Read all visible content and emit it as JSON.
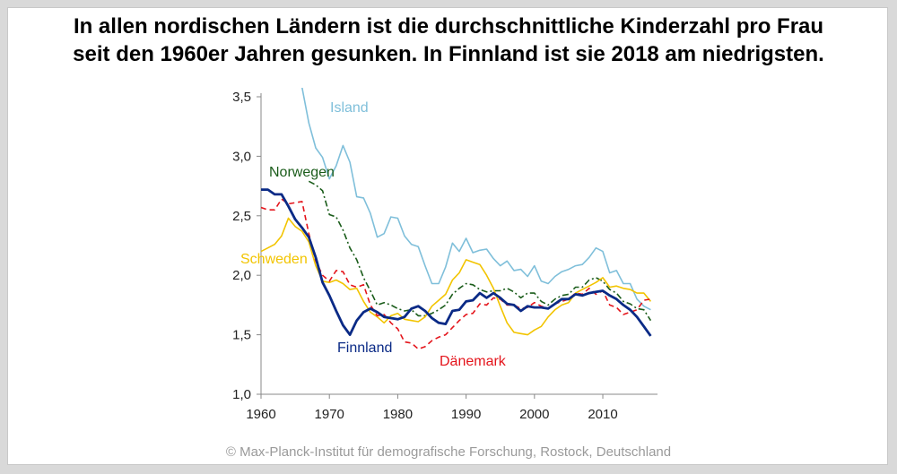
{
  "title": {
    "line1": "In allen nordischen Ländern ist die durchschnittliche Kinderzahl pro Frau",
    "line2": "seit den 1960er Jahren gesunken. In Finnland ist sie 2018 am niedrigsten."
  },
  "footer": "© Max-Planck-Institut für demografische Forschung, Rostock, Deutschland",
  "chart_data": {
    "type": "line",
    "xlim": [
      1960,
      2018
    ],
    "ylim": [
      1.0,
      3.5
    ],
    "x_ticks": [
      1960,
      1970,
      1980,
      1990,
      2000,
      2010
    ],
    "x_tick_labels": [
      "1960",
      "1970",
      "1980",
      "1990",
      "2000",
      "2010"
    ],
    "y_ticks": [
      1.0,
      1.5,
      2.0,
      2.5,
      3.0,
      3.5
    ],
    "y_tick_labels": [
      "1,0",
      "1,5",
      "2,0",
      "2,5",
      "3,0",
      "3,5"
    ],
    "grid": false,
    "legend": "inline labels",
    "series": [
      {
        "name": "Island",
        "color": "#7fbfda",
        "style": "solid",
        "x": [
          1966,
          1967,
          1968,
          1969,
          1970,
          1971,
          1972,
          1973,
          1974,
          1975,
          1976,
          1977,
          1978,
          1979,
          1980,
          1981,
          1982,
          1983,
          1984,
          1985,
          1986,
          1987,
          1988,
          1989,
          1990,
          1991,
          1992,
          1993,
          1994,
          1995,
          1996,
          1997,
          1998,
          1999,
          2000,
          2001,
          2002,
          2003,
          2004,
          2005,
          2006,
          2007,
          2008,
          2009,
          2010,
          2011,
          2012,
          2013,
          2014,
          2015,
          2016,
          2017
        ],
        "values": [
          3.58,
          3.28,
          3.07,
          2.99,
          2.81,
          2.92,
          3.09,
          2.95,
          2.66,
          2.65,
          2.52,
          2.32,
          2.35,
          2.49,
          2.48,
          2.33,
          2.26,
          2.24,
          2.08,
          1.93,
          1.93,
          2.07,
          2.27,
          2.2,
          2.31,
          2.19,
          2.21,
          2.22,
          2.14,
          2.08,
          2.12,
          2.04,
          2.05,
          1.99,
          2.08,
          1.95,
          1.93,
          1.99,
          2.03,
          2.05,
          2.08,
          2.09,
          2.15,
          2.23,
          2.2,
          2.02,
          2.04,
          1.93,
          1.93,
          1.8,
          1.74,
          1.71
        ]
      },
      {
        "name": "Norwegen",
        "color": "#1a5c1a",
        "style": "dashdot",
        "x": [
          1967,
          1968,
          1969,
          1970,
          1971,
          1972,
          1973,
          1974,
          1975,
          1976,
          1977,
          1978,
          1979,
          1980,
          1981,
          1982,
          1983,
          1984,
          1985,
          1986,
          1987,
          1988,
          1989,
          1990,
          1991,
          1992,
          1993,
          1994,
          1995,
          1996,
          1997,
          1998,
          1999,
          2000,
          2001,
          2002,
          2003,
          2004,
          2005,
          2006,
          2007,
          2008,
          2009,
          2010,
          2011,
          2012,
          2013,
          2014,
          2015,
          2016,
          2017
        ],
        "values": [
          2.79,
          2.76,
          2.71,
          2.51,
          2.49,
          2.38,
          2.23,
          2.13,
          1.98,
          1.87,
          1.75,
          1.77,
          1.75,
          1.72,
          1.7,
          1.71,
          1.66,
          1.66,
          1.68,
          1.71,
          1.75,
          1.84,
          1.89,
          1.93,
          1.92,
          1.88,
          1.86,
          1.87,
          1.87,
          1.89,
          1.86,
          1.81,
          1.85,
          1.85,
          1.78,
          1.75,
          1.8,
          1.83,
          1.84,
          1.9,
          1.9,
          1.96,
          1.98,
          1.95,
          1.88,
          1.85,
          1.78,
          1.76,
          1.72,
          1.71,
          1.62
        ]
      },
      {
        "name": "Schweden",
        "color": "#f2c400",
        "style": "solid",
        "x": [
          1960,
          1961,
          1962,
          1963,
          1964,
          1965,
          1966,
          1967,
          1968,
          1969,
          1970,
          1971,
          1972,
          1973,
          1974,
          1975,
          1976,
          1977,
          1978,
          1979,
          1980,
          1981,
          1982,
          1983,
          1984,
          1985,
          1986,
          1987,
          1988,
          1989,
          1990,
          1991,
          1992,
          1993,
          1994,
          1995,
          1996,
          1997,
          1998,
          1999,
          2000,
          2001,
          2002,
          2003,
          2004,
          2005,
          2006,
          2007,
          2008,
          2009,
          2010,
          2011,
          2012,
          2013,
          2014,
          2015,
          2016,
          2017
        ],
        "values": [
          2.2,
          2.23,
          2.26,
          2.33,
          2.48,
          2.41,
          2.37,
          2.28,
          2.08,
          1.95,
          1.94,
          1.96,
          1.93,
          1.88,
          1.89,
          1.78,
          1.69,
          1.65,
          1.6,
          1.66,
          1.68,
          1.63,
          1.62,
          1.61,
          1.65,
          1.74,
          1.79,
          1.84,
          1.96,
          2.02,
          2.13,
          2.11,
          2.09,
          2.0,
          1.89,
          1.74,
          1.6,
          1.52,
          1.51,
          1.5,
          1.54,
          1.57,
          1.65,
          1.71,
          1.75,
          1.77,
          1.85,
          1.88,
          1.91,
          1.94,
          1.98,
          1.9,
          1.91,
          1.89,
          1.88,
          1.85,
          1.85,
          1.78
        ]
      },
      {
        "name": "Dänemark",
        "color": "#e4141b",
        "style": "dashed",
        "x": [
          1960,
          1961,
          1962,
          1963,
          1964,
          1965,
          1966,
          1967,
          1968,
          1969,
          1970,
          1971,
          1972,
          1973,
          1974,
          1975,
          1976,
          1977,
          1978,
          1979,
          1980,
          1981,
          1982,
          1983,
          1984,
          1985,
          1986,
          1987,
          1988,
          1989,
          1990,
          1991,
          1992,
          1993,
          1994,
          1995,
          1996,
          1997,
          1998,
          1999,
          2000,
          2001,
          2002,
          2003,
          2004,
          2005,
          2006,
          2007,
          2008,
          2009,
          2010,
          2011,
          2012,
          2013,
          2014,
          2015,
          2016,
          2017
        ],
        "values": [
          2.57,
          2.55,
          2.55,
          2.64,
          2.6,
          2.61,
          2.62,
          2.35,
          2.12,
          2.0,
          1.95,
          2.04,
          2.03,
          1.92,
          1.9,
          1.92,
          1.75,
          1.66,
          1.67,
          1.6,
          1.55,
          1.44,
          1.43,
          1.38,
          1.4,
          1.45,
          1.48,
          1.5,
          1.56,
          1.62,
          1.67,
          1.68,
          1.76,
          1.75,
          1.81,
          1.8,
          1.75,
          1.75,
          1.72,
          1.73,
          1.77,
          1.74,
          1.72,
          1.76,
          1.78,
          1.8,
          1.85,
          1.84,
          1.89,
          1.84,
          1.87,
          1.75,
          1.73,
          1.67,
          1.69,
          1.71,
          1.79,
          1.8
        ]
      },
      {
        "name": "Finnland",
        "color": "#0a2a86",
        "style": "solid-bold",
        "x": [
          1960,
          1961,
          1962,
          1963,
          1964,
          1965,
          1966,
          1967,
          1968,
          1969,
          1970,
          1971,
          1972,
          1973,
          1974,
          1975,
          1976,
          1977,
          1978,
          1979,
          1980,
          1981,
          1982,
          1983,
          1984,
          1985,
          1986,
          1987,
          1988,
          1989,
          1990,
          1991,
          1992,
          1993,
          1994,
          1995,
          1996,
          1997,
          1998,
          1999,
          2000,
          2001,
          2002,
          2003,
          2004,
          2005,
          2006,
          2007,
          2008,
          2009,
          2010,
          2011,
          2012,
          2013,
          2014,
          2015,
          2016,
          2017
        ],
        "values": [
          2.72,
          2.72,
          2.68,
          2.68,
          2.58,
          2.47,
          2.4,
          2.32,
          2.15,
          1.94,
          1.83,
          1.7,
          1.58,
          1.5,
          1.62,
          1.69,
          1.72,
          1.69,
          1.65,
          1.64,
          1.63,
          1.65,
          1.72,
          1.74,
          1.7,
          1.64,
          1.6,
          1.59,
          1.7,
          1.71,
          1.78,
          1.79,
          1.85,
          1.81,
          1.85,
          1.81,
          1.76,
          1.75,
          1.7,
          1.74,
          1.73,
          1.73,
          1.72,
          1.76,
          1.8,
          1.8,
          1.84,
          1.83,
          1.85,
          1.86,
          1.87,
          1.83,
          1.8,
          1.75,
          1.71,
          1.65,
          1.57,
          1.49
        ]
      }
    ],
    "labels": [
      {
        "text": "Island",
        "series": "Island"
      },
      {
        "text": "Norwegen",
        "series": "Norwegen"
      },
      {
        "text": "Schweden",
        "series": "Schweden"
      },
      {
        "text": "Finnland",
        "series": "Finnland"
      },
      {
        "text": "Dänemark",
        "series": "Dänemark"
      }
    ]
  }
}
